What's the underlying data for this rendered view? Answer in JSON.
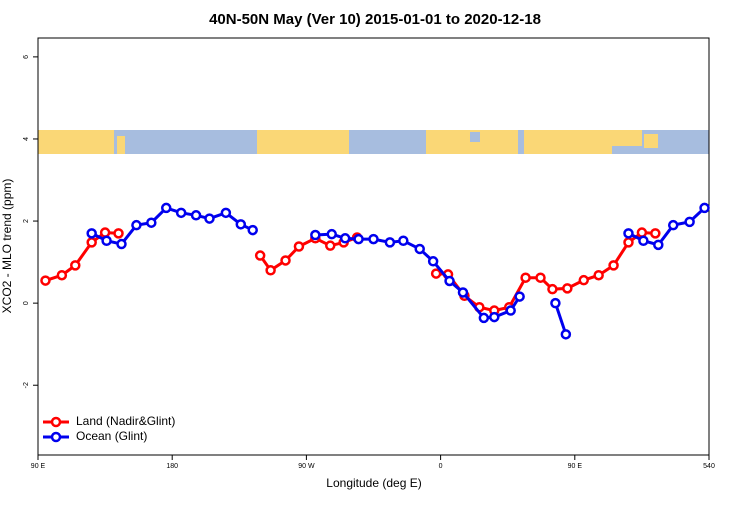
{
  "chart_data": {
    "type": "line",
    "title": "40N-50N May (Ver 10)   2015-01-01 to 2020-12-18",
    "xlabel": "Longitude (deg E)",
    "ylabel": "XCO2 - MLO trend (ppm)",
    "xlim": [
      90,
      540
    ],
    "xticks": [
      {
        "value": 90,
        "label": "90 E"
      },
      180,
      {
        "value": 270,
        "label": "90 W"
      },
      {
        "value": 360,
        "label": "0"
      },
      {
        "value": 450,
        "label": "90 E"
      },
      540
    ],
    "ylim": [
      -3.7,
      6.46
    ],
    "yticks": [
      -2,
      0,
      2,
      4,
      6
    ],
    "legend": "bottom left",
    "series": [
      {
        "name": "Land (Nadir&Glint)",
        "color": "#ff0000",
        "x": [
          95,
          106,
          115,
          126,
          135,
          144,
          null,
          239,
          246,
          256,
          265,
          276,
          286,
          295,
          304,
          null,
          357,
          365,
          376,
          386,
          396,
          406,
          417,
          427,
          435,
          445,
          456,
          466,
          476,
          486,
          495,
          504
        ],
        "values": [
          0.55,
          0.68,
          0.92,
          1.48,
          1.72,
          1.7,
          null,
          1.16,
          0.8,
          1.04,
          1.38,
          1.58,
          1.4,
          1.48,
          1.6,
          null,
          0.72,
          0.7,
          0.18,
          -0.1,
          -0.18,
          -0.1,
          0.62,
          0.62,
          0.34,
          0.36,
          0.56,
          0.68,
          0.92,
          1.48,
          1.72,
          1.7
        ]
      },
      {
        "name": "Ocean (Glint)",
        "color": "#0000ee",
        "x": [
          126,
          136,
          146,
          156,
          166,
          176,
          186,
          196,
          205,
          216,
          226,
          234,
          null,
          276,
          287,
          296,
          305,
          315,
          326,
          335,
          346,
          355,
          366,
          375,
          389,
          396,
          407,
          413,
          null,
          437,
          444,
          null,
          486,
          496,
          506,
          516,
          527,
          537
        ],
        "values": [
          1.7,
          1.52,
          1.44,
          1.9,
          1.96,
          2.32,
          2.2,
          2.14,
          2.06,
          2.2,
          1.92,
          1.78,
          null,
          1.66,
          1.68,
          1.58,
          1.56,
          1.56,
          1.48,
          1.52,
          1.32,
          1.02,
          0.54,
          0.26,
          -0.36,
          -0.34,
          -0.18,
          0.16,
          null,
          0.0,
          -0.76,
          null,
          1.7,
          1.52,
          1.42,
          1.9,
          1.98,
          2.32
        ]
      }
    ]
  }
}
